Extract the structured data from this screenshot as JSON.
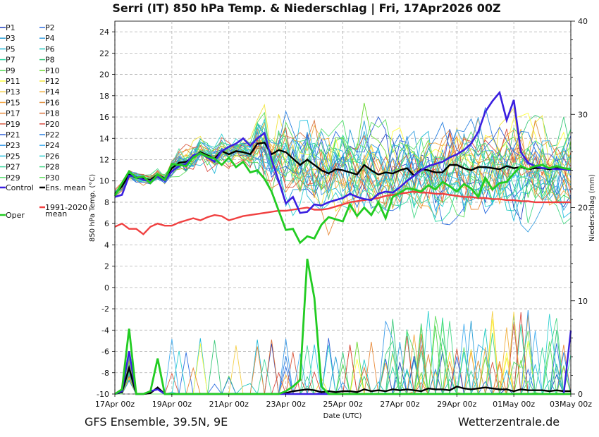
{
  "chart_data": {
    "type": "line",
    "title": "Serri  (IT)  850 hPa Temp. & Niederschlag | Fri, 17Apr2026 00Z",
    "xlabel": "Date (UTC)",
    "ylabel_left": "850 hPa Temp. (°C)",
    "ylabel_right": "Niederschlag (mm)",
    "ylim_left": [
      -10,
      25
    ],
    "ylim_right": [
      0,
      40
    ],
    "yticks_left": [
      "24",
      "22",
      "20",
      "18",
      "16",
      "14",
      "12",
      "10",
      "8",
      "6",
      "4",
      "2",
      "0",
      "-2",
      "-4",
      "-6",
      "-8",
      "-10"
    ],
    "yticks_right": [
      "40",
      "30",
      "20",
      "10",
      "0"
    ],
    "xticks": [
      "17Apr 00z",
      "19Apr 00z",
      "21Apr 00z",
      "23Apr 00z",
      "25Apr 00z",
      "27Apr 00z",
      "29Apr 00z",
      "01May 00z",
      "03May 00z"
    ],
    "x_hours_range": [
      0,
      384
    ],
    "step_hours": 6,
    "grid": true,
    "legend": {
      "placement": "left",
      "members": [
        "P1",
        "P2",
        "P3",
        "P4",
        "P5",
        "P6",
        "P7",
        "P8",
        "P9",
        "P10",
        "P11",
        "P12",
        "P13",
        "P14",
        "P15",
        "P16",
        "P17",
        "P18",
        "P19",
        "P20",
        "P21",
        "P22",
        "P23",
        "P24",
        "P25",
        "P26",
        "P27",
        "P28",
        "P29",
        "P30"
      ],
      "member_colors": [
        "#1f3fbf",
        "#2f6fe0",
        "#2a9fd6",
        "#3aa0e0",
        "#22b8d8",
        "#1fc8c0",
        "#2bd8a0",
        "#38c878",
        "#50d850",
        "#6ad830",
        "#ffff40",
        "#f2e640",
        "#f5d04a",
        "#f2b040",
        "#f5a640",
        "#e09040",
        "#e88a3a",
        "#d8703a",
        "#d85a40",
        "#d84a40",
        "#3060d8",
        "#2a80e0",
        "#3a9ae8",
        "#48b0f0",
        "#28c0e0",
        "#30d0d0",
        "#40d8a0",
        "#48d888",
        "#58e070",
        "#60e060"
      ],
      "control_label": "Control",
      "ensmean_label": "Ens. mean",
      "oper_label": "Oper",
      "clim_label_line1": "1991-2020",
      "clim_label_line2": "mean"
    },
    "series": {
      "oper": [
        8.6,
        9.8,
        10.9,
        10.3,
        10.4,
        9.8,
        10.6,
        10.1,
        11.6,
        11.5,
        11.4,
        12.2,
        12.6,
        12.3,
        12.1,
        11.5,
        12.2,
        11.3,
        11.8,
        10.8,
        11.0,
        10.2,
        9.0,
        7.2,
        5.4,
        5.5,
        4.2,
        4.8,
        4.6,
        5.9,
        6.6,
        6.4,
        6.2,
        7.8,
        6.7,
        7.5,
        6.8,
        8.0,
        6.5,
        8.5,
        8.9,
        9.3,
        9.2,
        9.0,
        9.6,
        9.2,
        9.9,
        9.5,
        9.0,
        9.7,
        9.3,
        8.5,
        10.3,
        9.2,
        9.8,
        9.9,
        10.7,
        11.4,
        11.1,
        11.4,
        11.5,
        11.2,
        11.4,
        11.2,
        11.1
      ],
      "control": [
        8.5,
        8.7,
        10.5,
        10.4,
        10.1,
        10.0,
        10.4,
        10.0,
        10.9,
        11.4,
        11.6,
        12.4,
        12.6,
        12.2,
        11.8,
        12.8,
        13.2,
        13.5,
        14.0,
        13.3,
        14.0,
        14.5,
        12.0,
        10.0,
        7.9,
        8.5,
        7.0,
        7.1,
        7.8,
        7.7,
        8.0,
        8.2,
        8.4,
        8.8,
        8.5,
        8.3,
        8.2,
        8.8,
        9.0,
        8.9,
        9.4,
        10.0,
        10.5,
        11.0,
        11.4,
        11.6,
        11.8,
        12.2,
        12.5,
        12.9,
        13.5,
        14.6,
        16.5,
        17.5,
        18.3,
        15.7,
        17.6,
        12.7,
        11.7,
        11.4,
        11.2,
        11.2,
        11.1,
        11.1,
        11.0
      ],
      "ens_mean": [
        8.8,
        9.5,
        10.6,
        10.3,
        10.2,
        10.1,
        10.6,
        10.2,
        11.2,
        11.7,
        11.8,
        12.2,
        12.7,
        12.4,
        12.1,
        12.8,
        12.5,
        12.8,
        12.7,
        12.5,
        13.5,
        13.6,
        12.5,
        12.9,
        12.7,
        12.1,
        11.5,
        12.0,
        11.5,
        11.0,
        10.7,
        11.1,
        11.0,
        10.8,
        10.6,
        11.5,
        11.0,
        10.6,
        10.8,
        10.7,
        11.0,
        11.2,
        10.5,
        11.1,
        11.0,
        10.8,
        10.8,
        11.5,
        11.5,
        11.2,
        11.0,
        11.3,
        11.3,
        11.2,
        11.1,
        11.4,
        11.2,
        11.3,
        11.1,
        11.2,
        11.2,
        11.1,
        11.2,
        11.2,
        11.1
      ],
      "climatology": [
        5.7,
        6.0,
        5.5,
        5.5,
        5.0,
        5.7,
        6.0,
        5.8,
        5.8,
        6.1,
        6.3,
        6.5,
        6.3,
        6.6,
        6.8,
        6.7,
        6.3,
        6.5,
        6.7,
        6.8,
        6.9,
        7.0,
        7.1,
        7.2,
        7.2,
        7.3,
        7.4,
        7.5,
        7.3,
        7.3,
        7.4,
        7.6,
        7.8,
        8.0,
        8.1,
        8.2,
        8.3,
        8.4,
        8.6,
        8.7,
        8.8,
        8.9,
        9.0,
        8.9,
        8.9,
        8.8,
        8.8,
        8.7,
        8.6,
        8.5,
        8.5,
        8.4,
        8.4,
        8.3,
        8.3,
        8.2,
        8.2,
        8.1,
        8.1,
        8.0,
        8.0,
        8.0,
        8.0,
        8.0,
        8.0
      ],
      "precip_oper": [
        0,
        0.5,
        7.0,
        0.0,
        0.0,
        0.3,
        3.8,
        0.0,
        0,
        0,
        0,
        0,
        0,
        0,
        0,
        0,
        0,
        0,
        0,
        0,
        0,
        0,
        0,
        0,
        0.3,
        0.8,
        1.5,
        14.5,
        10.3,
        0.8,
        0,
        0,
        0,
        0,
        0,
        0,
        0,
        0,
        0,
        0,
        0,
        0,
        0,
        0,
        0,
        0,
        0,
        0,
        0,
        0,
        0,
        0,
        0,
        0,
        0,
        0,
        0,
        0,
        0,
        0,
        0,
        0,
        0,
        0,
        0
      ],
      "precip_control": [
        0,
        0.3,
        4.6,
        0.0,
        0.0,
        0.3,
        0.5,
        0.0,
        0,
        0,
        0,
        0,
        0,
        0,
        0,
        0,
        0,
        0,
        0,
        0,
        0,
        0,
        0,
        0,
        0,
        0,
        0,
        0,
        0,
        0,
        0,
        0,
        0,
        0,
        0,
        0,
        0,
        0,
        0,
        0,
        0,
        0,
        0,
        0,
        0,
        0,
        0,
        0,
        0,
        0,
        0,
        0,
        0,
        0,
        0,
        0,
        0,
        0,
        0,
        0,
        0,
        0,
        0,
        0,
        6.8
      ],
      "precip_mean": [
        0,
        0.2,
        2.8,
        0.0,
        0.0,
        0.1,
        0.7,
        0.0,
        0,
        0,
        0,
        0,
        0,
        0,
        0,
        0,
        0,
        0,
        0,
        0,
        0,
        0,
        0,
        0,
        0.1,
        0.3,
        0.4,
        0.5,
        0.4,
        0.2,
        0.3,
        0.2,
        0.3,
        0.3,
        0.2,
        0.5,
        0.3,
        0.4,
        0.3,
        0.5,
        0.4,
        0.5,
        0.4,
        0.3,
        0.6,
        0.5,
        0.5,
        0.4,
        0.8,
        0.6,
        0.5,
        0.6,
        0.7,
        0.6,
        0.5,
        0.5,
        0.3,
        0.5,
        0.4,
        0.4,
        0.4,
        0.3,
        0.4,
        0.3,
        0.3
      ]
    }
  },
  "footer": {
    "left": "GFS Ensemble, 39.5N, 9E",
    "right": "Wetterzentrale.de"
  }
}
